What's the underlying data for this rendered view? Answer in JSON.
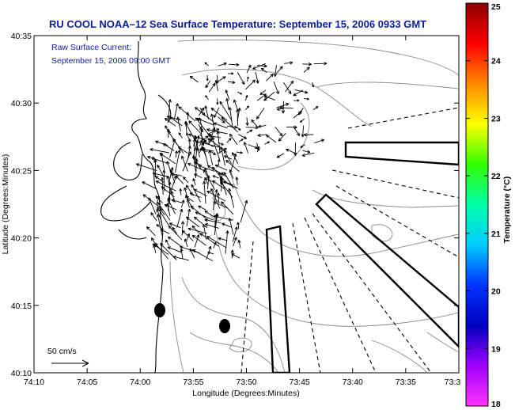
{
  "title": "RU COOL  NOAA–12  Sea Surface Temperature:  September 15, 2006 0933 GMT",
  "current_note": {
    "line1": "Raw Surface Current:",
    "line2": "September 15, 2006 09:00 GMT"
  },
  "x_axis": {
    "label": "Longitude (Degrees:Minutes)",
    "ticks": [
      "74:10",
      "74:05",
      "74:00",
      "73:55",
      "73:50",
      "73:45",
      "73:40",
      "73:35",
      "73:3"
    ]
  },
  "y_axis": {
    "label": "Latitude (Degrees:Minutes)",
    "ticks": [
      "40:35",
      "40:30",
      "40:25",
      "40:20",
      "40:15",
      "40:10"
    ]
  },
  "scale_vector": {
    "label": "50 cm/s"
  },
  "colorbar": {
    "label": "Temperature (°C)",
    "ticks": [
      "25",
      "24",
      "23",
      "22",
      "21",
      "20",
      "19",
      "18"
    ],
    "colors": [
      "#8b0000",
      "#ff0000",
      "#ff8800",
      "#ffff00",
      "#33ff00",
      "#00ffaa",
      "#00ccff",
      "#0033ff",
      "#0000c0",
      "#a000ff",
      "#ff33ff"
    ]
  },
  "colors": {
    "title": "#0a1f9c",
    "line": "#000000",
    "bathymetry": "#8a8a8a"
  }
}
